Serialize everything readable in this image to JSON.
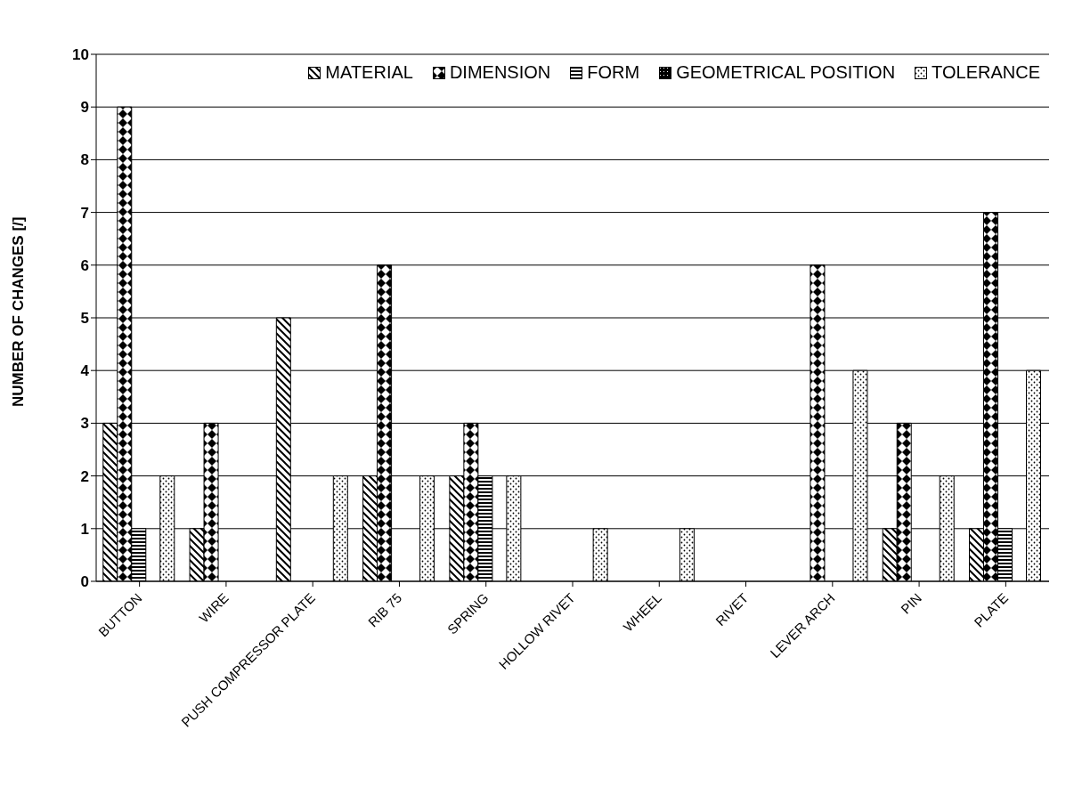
{
  "chart_data": {
    "type": "bar",
    "ylabel": "NUMBER OF CHANGES [/]",
    "categories": [
      "BUTTON",
      "WIRE",
      "PUSH COMPRESSOR PLATE",
      "RIB 75",
      "SPRING",
      "HOLLOW RIVET",
      "WHEEL",
      "RIVET",
      "LEVER ARCH",
      "PIN",
      "PLATE"
    ],
    "series": [
      {
        "name": "MATERIAL",
        "color": "#000000",
        "values": [
          3,
          1,
          5,
          2,
          2,
          0,
          0,
          0,
          0,
          1,
          1
        ]
      },
      {
        "name": "DIMENSION",
        "color": "#000000",
        "values": [
          9,
          3,
          0,
          6,
          3,
          0,
          0,
          0,
          6,
          3,
          7
        ]
      },
      {
        "name": "FORM",
        "color": "#000000",
        "values": [
          1,
          0,
          0,
          0,
          2,
          0,
          0,
          0,
          0,
          0,
          1
        ]
      },
      {
        "name": "GEOMETRICAL POSITION",
        "color": "#000000",
        "values": [
          0,
          0,
          0,
          0,
          0,
          0,
          0,
          0,
          0,
          0,
          0
        ]
      },
      {
        "name": "TOLERANCE",
        "color": "#000000",
        "values": [
          2,
          0,
          2,
          2,
          2,
          1,
          1,
          0,
          4,
          2,
          4
        ]
      }
    ],
    "ylim": [
      0,
      10
    ],
    "yticks": [
      0,
      1,
      2,
      3,
      4,
      5,
      6,
      7,
      8,
      9,
      10
    ],
    "grid": "y",
    "legend": "top"
  }
}
